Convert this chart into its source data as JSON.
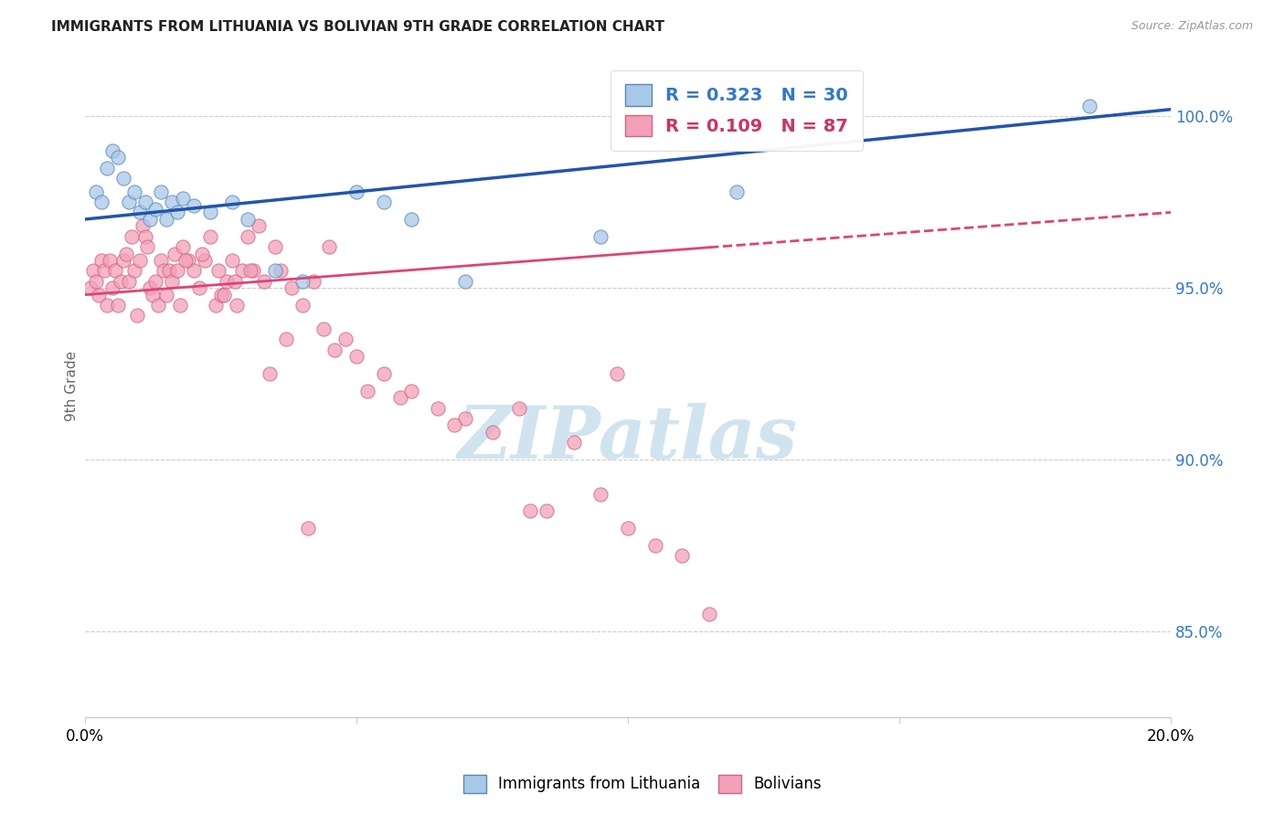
{
  "title": "IMMIGRANTS FROM LITHUANIA VS BOLIVIAN 9TH GRADE CORRELATION CHART",
  "source": "Source: ZipAtlas.com",
  "ylabel": "9th Grade",
  "y_ticks": [
    85.0,
    90.0,
    95.0,
    100.0
  ],
  "x_range": [
    0.0,
    20.0
  ],
  "y_range": [
    82.5,
    101.8
  ],
  "legend_R1": "0.323",
  "legend_N1": "30",
  "legend_R2": "0.109",
  "legend_N2": "87",
  "color_blue_fill": "#a8c8e8",
  "color_pink_fill": "#f4a0b8",
  "color_blue_edge": "#5588bb",
  "color_pink_edge": "#cc6688",
  "color_line_blue": "#2255aa",
  "color_line_pink": "#dd4477",
  "color_blue_text": "#3377cc",
  "color_pink_text": "#cc3366",
  "watermark_color": "#d0e4f0",
  "blue_line_x0": 0.0,
  "blue_line_y0": 97.0,
  "blue_line_x1": 20.0,
  "blue_line_y1": 100.2,
  "pink_line_x0": 0.0,
  "pink_line_y0": 94.8,
  "pink_line_x1": 20.0,
  "pink_line_y1": 97.2,
  "pink_solid_end": 11.5,
  "blue_points_x": [
    0.2,
    0.3,
    0.4,
    0.5,
    0.6,
    0.7,
    0.8,
    0.9,
    1.0,
    1.1,
    1.2,
    1.3,
    1.4,
    1.5,
    1.6,
    1.7,
    1.8,
    2.0,
    2.3,
    2.7,
    3.0,
    3.5,
    4.0,
    5.0,
    5.5,
    6.0,
    7.0,
    9.5,
    12.0,
    18.5
  ],
  "blue_points_y": [
    97.8,
    97.5,
    98.5,
    99.0,
    98.8,
    98.2,
    97.5,
    97.8,
    97.2,
    97.5,
    97.0,
    97.3,
    97.8,
    97.0,
    97.5,
    97.2,
    97.6,
    97.4,
    97.2,
    97.5,
    97.0,
    95.5,
    95.2,
    97.8,
    97.5,
    97.0,
    95.2,
    96.5,
    97.8,
    100.3
  ],
  "pink_points_x": [
    0.1,
    0.15,
    0.2,
    0.25,
    0.3,
    0.35,
    0.4,
    0.45,
    0.5,
    0.55,
    0.6,
    0.65,
    0.7,
    0.75,
    0.8,
    0.85,
    0.9,
    0.95,
    1.0,
    1.05,
    1.1,
    1.15,
    1.2,
    1.25,
    1.3,
    1.35,
    1.4,
    1.45,
    1.5,
    1.55,
    1.6,
    1.65,
    1.7,
    1.75,
    1.8,
    1.9,
    2.0,
    2.1,
    2.2,
    2.3,
    2.4,
    2.5,
    2.6,
    2.7,
    2.8,
    2.9,
    3.0,
    3.1,
    3.2,
    3.3,
    3.5,
    3.6,
    3.7,
    3.8,
    4.0,
    4.2,
    4.4,
    4.5,
    4.6,
    4.8,
    5.0,
    5.5,
    5.8,
    6.0,
    6.5,
    7.0,
    7.5,
    8.0,
    8.5,
    9.0,
    9.5,
    10.0,
    10.5,
    11.0,
    11.5,
    3.4,
    4.1,
    5.2,
    6.8,
    8.2,
    9.8,
    2.15,
    1.85,
    2.45,
    2.75,
    2.55,
    3.05
  ],
  "pink_points_y": [
    95.0,
    95.5,
    95.2,
    94.8,
    95.8,
    95.5,
    94.5,
    95.8,
    95.0,
    95.5,
    94.5,
    95.2,
    95.8,
    96.0,
    95.2,
    96.5,
    95.5,
    94.2,
    95.8,
    96.8,
    96.5,
    96.2,
    95.0,
    94.8,
    95.2,
    94.5,
    95.8,
    95.5,
    94.8,
    95.5,
    95.2,
    96.0,
    95.5,
    94.5,
    96.2,
    95.8,
    95.5,
    95.0,
    95.8,
    96.5,
    94.5,
    94.8,
    95.2,
    95.8,
    94.5,
    95.5,
    96.5,
    95.5,
    96.8,
    95.2,
    96.2,
    95.5,
    93.5,
    95.0,
    94.5,
    95.2,
    93.8,
    96.2,
    93.2,
    93.5,
    93.0,
    92.5,
    91.8,
    92.0,
    91.5,
    91.2,
    90.8,
    91.5,
    88.5,
    90.5,
    89.0,
    88.0,
    87.5,
    87.2,
    85.5,
    92.5,
    88.0,
    92.0,
    91.0,
    88.5,
    92.5,
    96.0,
    95.8,
    95.5,
    95.2,
    94.8,
    95.5
  ]
}
